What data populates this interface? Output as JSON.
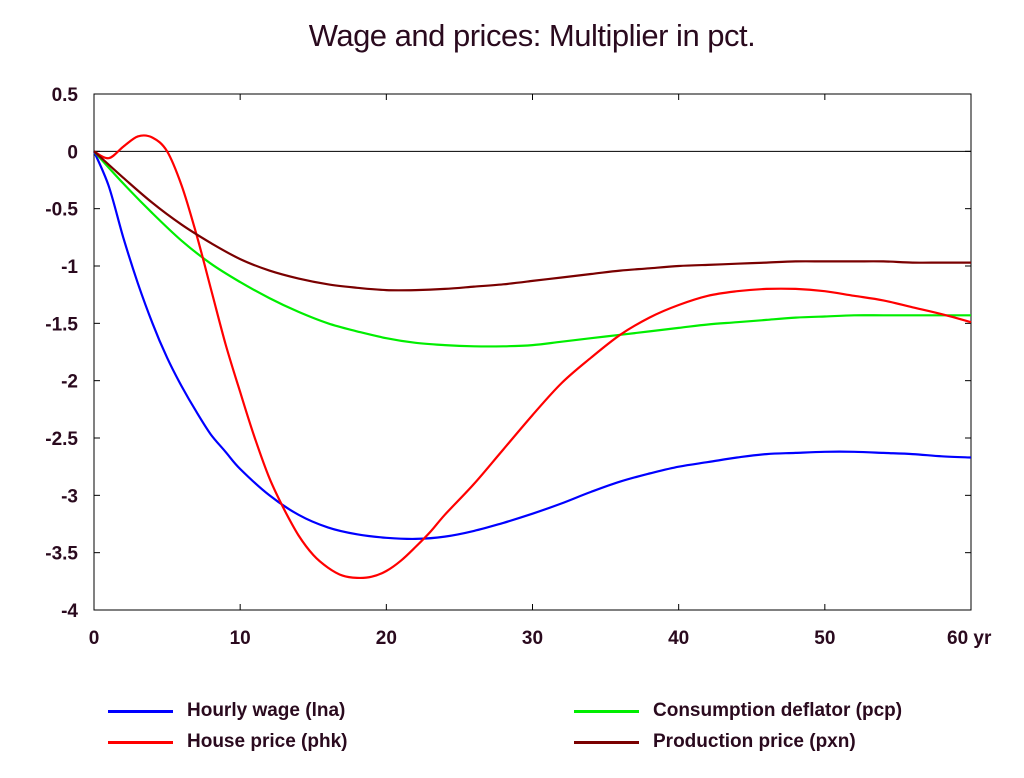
{
  "chart_data": {
    "type": "line",
    "title": "Wage and prices: Multiplier in pct.",
    "xlabel": "",
    "ylabel": "",
    "x_unit": "yr",
    "xlim": [
      0,
      60
    ],
    "ylim": [
      -4,
      0.5
    ],
    "x_ticks": [
      0,
      10,
      20,
      30,
      40,
      50,
      60
    ],
    "x_tick_labels": [
      "0",
      "10",
      "20",
      "30",
      "40",
      "50",
      "60 yr"
    ],
    "y_ticks": [
      0.5,
      0,
      -0.5,
      -1,
      -1.5,
      -2,
      -2.5,
      -3,
      -3.5,
      -4
    ],
    "y_tick_labels": [
      "0.5",
      "0",
      "-0.5",
      "-1",
      "-1.5",
      "-2",
      "-2.5",
      "-3",
      "-3.5",
      "-4"
    ],
    "grid": false,
    "zero_line": true,
    "legend_position": "bottom",
    "series": [
      {
        "name": "Hourly wage (lna)",
        "color": "#0000ff",
        "x": [
          0,
          1,
          2,
          3,
          4,
          5,
          6,
          7,
          8,
          9,
          10,
          12,
          14,
          16,
          18,
          20,
          22,
          24,
          26,
          28,
          30,
          32,
          34,
          36,
          38,
          40,
          42,
          44,
          46,
          48,
          50,
          52,
          54,
          56,
          58,
          60
        ],
        "y": [
          0,
          -0.3,
          -0.75,
          -1.15,
          -1.5,
          -1.8,
          -2.05,
          -2.27,
          -2.47,
          -2.62,
          -2.77,
          -3.0,
          -3.17,
          -3.28,
          -3.34,
          -3.37,
          -3.38,
          -3.36,
          -3.31,
          -3.24,
          -3.16,
          -3.07,
          -2.97,
          -2.88,
          -2.81,
          -2.75,
          -2.71,
          -2.67,
          -2.64,
          -2.63,
          -2.62,
          -2.62,
          -2.63,
          -2.64,
          -2.66,
          -2.67
        ]
      },
      {
        "name": "Consumption deflator (pcp)",
        "color": "#00ee00",
        "x": [
          0,
          2,
          4,
          6,
          8,
          10,
          12,
          14,
          16,
          18,
          20,
          22,
          24,
          26,
          28,
          30,
          32,
          34,
          36,
          38,
          40,
          42,
          44,
          46,
          48,
          50,
          52,
          54,
          56,
          58,
          60
        ],
        "y": [
          0,
          -0.28,
          -0.54,
          -0.78,
          -0.98,
          -1.14,
          -1.28,
          -1.4,
          -1.5,
          -1.57,
          -1.63,
          -1.67,
          -1.69,
          -1.7,
          -1.7,
          -1.69,
          -1.66,
          -1.63,
          -1.6,
          -1.57,
          -1.54,
          -1.51,
          -1.49,
          -1.47,
          -1.45,
          -1.44,
          -1.43,
          -1.43,
          -1.43,
          -1.43,
          -1.43
        ]
      },
      {
        "name": "House price (phk)",
        "color": "#ff0000",
        "x": [
          0,
          1,
          2,
          3,
          4,
          5,
          6,
          7,
          8,
          9,
          10,
          11,
          12,
          13,
          14,
          15,
          16,
          17,
          18,
          19,
          20,
          21,
          22,
          23,
          24,
          26,
          28,
          30,
          32,
          34,
          36,
          38,
          40,
          42,
          44,
          46,
          48,
          50,
          52,
          54,
          56,
          58,
          60
        ],
        "y": [
          0,
          -0.06,
          0.04,
          0.13,
          0.12,
          0.0,
          -0.3,
          -0.72,
          -1.2,
          -1.68,
          -2.1,
          -2.5,
          -2.85,
          -3.12,
          -3.35,
          -3.52,
          -3.63,
          -3.7,
          -3.72,
          -3.71,
          -3.66,
          -3.57,
          -3.45,
          -3.32,
          -3.17,
          -2.9,
          -2.6,
          -2.3,
          -2.02,
          -1.8,
          -1.6,
          -1.45,
          -1.34,
          -1.26,
          -1.22,
          -1.2,
          -1.2,
          -1.22,
          -1.26,
          -1.3,
          -1.36,
          -1.42,
          -1.49
        ]
      },
      {
        "name": "Production price (pxn)",
        "color": "#7a0000",
        "x": [
          0,
          2,
          4,
          6,
          8,
          10,
          12,
          14,
          16,
          18,
          20,
          22,
          24,
          26,
          28,
          30,
          32,
          34,
          36,
          38,
          40,
          42,
          44,
          46,
          48,
          50,
          52,
          54,
          56,
          58,
          60
        ],
        "y": [
          0,
          -0.23,
          -0.45,
          -0.64,
          -0.8,
          -0.94,
          -1.04,
          -1.11,
          -1.16,
          -1.19,
          -1.21,
          -1.21,
          -1.2,
          -1.18,
          -1.16,
          -1.13,
          -1.1,
          -1.07,
          -1.04,
          -1.02,
          -1.0,
          -0.99,
          -0.98,
          -0.97,
          -0.96,
          -0.96,
          -0.96,
          -0.96,
          -0.97,
          -0.97,
          -0.97
        ]
      }
    ]
  }
}
